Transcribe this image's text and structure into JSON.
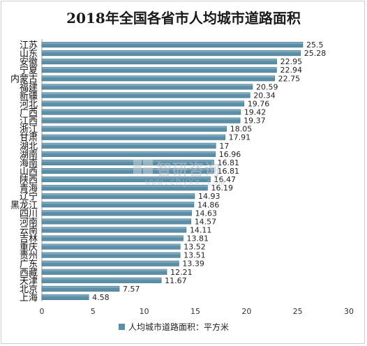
{
  "chart_data": {
    "type": "bar",
    "orientation": "horizontal",
    "title": "2018年全国各省市人均城市道路面积",
    "categories": [
      "江苏",
      "山东",
      "安徽",
      "宁夏",
      "内蒙古",
      "福建",
      "新疆",
      "河北",
      "广西",
      "江西",
      "浙江",
      "甘肃",
      "湖北",
      "湖南",
      "海南",
      "山西",
      "陕西",
      "青海",
      "辽宁",
      "黑龙江",
      "四川",
      "河南",
      "云南",
      "吉林",
      "重庆",
      "贵州",
      "广东",
      "西藏",
      "天津",
      "北京",
      "上海"
    ],
    "series": [
      {
        "name": "人均城市道路面积：平方米",
        "values": [
          25.5,
          25.28,
          22.95,
          22.94,
          22.75,
          20.59,
          20.34,
          19.76,
          19.42,
          19.37,
          18.05,
          17.91,
          17,
          16.96,
          16.81,
          16.81,
          16.47,
          16.19,
          14.93,
          14.86,
          14.63,
          14.57,
          14.11,
          13.81,
          13.52,
          13.51,
          13.39,
          12.21,
          11.67,
          7.57,
          4.58
        ],
        "labels": [
          "25.5",
          "25.28",
          "22.95",
          "22.94",
          "22.75",
          "20.59",
          "20.34",
          "19.76",
          "19.42",
          "19.37",
          "18.05",
          "17.91",
          "17",
          "16.96",
          "16.81",
          "16.81",
          "16.47",
          "16.19",
          "14.93",
          "14.86",
          "14.63",
          "14.57",
          "14.11",
          "13.81",
          "13.52",
          "13.51",
          "13.39",
          "12.21",
          "11.67",
          "7.57",
          "4.58"
        ]
      }
    ],
    "xlim": [
      0,
      30
    ],
    "xticks": [
      "0",
      "5",
      "10",
      "15",
      "20",
      "25",
      "30"
    ],
    "legend": {
      "label": "人均城市道路面积：平方米",
      "position": "bottom"
    },
    "colors": {
      "bar": "#5b8fa8",
      "bar_edge": "#3f6f88",
      "label": "#222222",
      "axis": "#999999"
    }
  },
  "watermark": {
    "name": "智研咨询",
    "url": "www.chyxx.com"
  }
}
